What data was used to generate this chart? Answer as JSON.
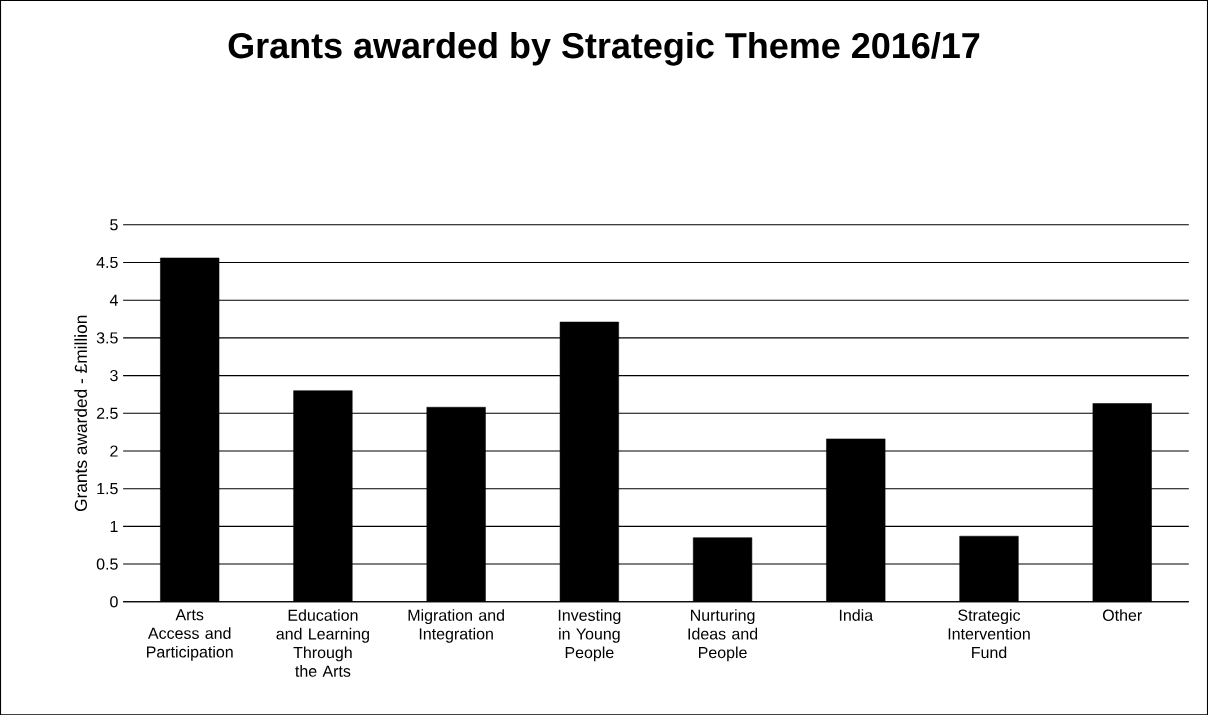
{
  "chart_data": {
    "type": "bar",
    "title": "Grants awarded by Strategic Theme 2016/17",
    "ylabel": "Grants awarded - £million",
    "categories": [
      "Arts Access and Participation",
      "Education and Learning Through the Arts",
      "Migration and Integration",
      "Investing in Young People",
      "Nurturing Ideas and People",
      "India",
      "Strategic Intervention Fund",
      "Other"
    ],
    "values": [
      4.56,
      2.8,
      2.58,
      3.71,
      0.85,
      2.16,
      0.87,
      2.63
    ],
    "color": "#000000",
    "ylim": [
      0,
      5
    ],
    "yticks": [
      0,
      0.5,
      1,
      1.5,
      2,
      2.5,
      3,
      3.5,
      4,
      4.5,
      5
    ],
    "grid": "y"
  }
}
